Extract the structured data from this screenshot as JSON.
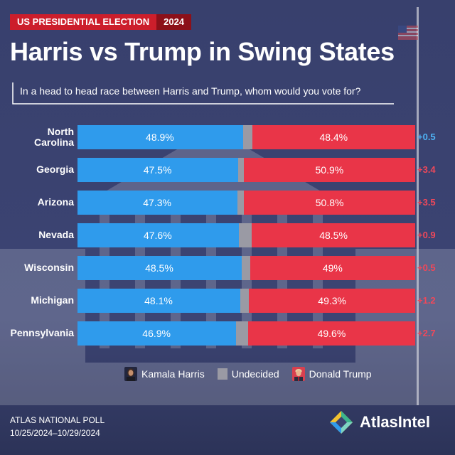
{
  "header": {
    "tag_left": "US PRESIDENTIAL ELECTION",
    "tag_right": "2024",
    "title": "Harris vs Trump in Swing States",
    "question": "In a head to head race between Harris and Trump, whom would you vote for?"
  },
  "colors": {
    "harris": "#2f9bec",
    "trump": "#e93548",
    "undecided": "#9a9aa4",
    "harris_margin": "#4fb3f5",
    "trump_margin": "#f0485a"
  },
  "chart_data": {
    "type": "bar",
    "orientation": "horizontal-stacked",
    "categories": [
      "North Carolina",
      "Georgia",
      "Arizona",
      "Nevada",
      "Wisconsin",
      "Michigan",
      "Pennsylvania"
    ],
    "series": [
      {
        "name": "Kamala Harris",
        "values": [
          48.9,
          47.5,
          47.3,
          47.6,
          48.5,
          48.1,
          46.9
        ],
        "labels": [
          "48.9%",
          "47.5%",
          "47.3%",
          "47.6%",
          "48.5%",
          "48.1%",
          "46.9%"
        ]
      },
      {
        "name": "Undecided",
        "values": [
          2.7,
          1.6,
          1.9,
          3.9,
          2.5,
          2.6,
          3.5
        ]
      },
      {
        "name": "Donald Trump",
        "values": [
          48.4,
          50.9,
          50.8,
          48.5,
          49.0,
          49.3,
          49.6
        ],
        "labels": [
          "48.4%",
          "50.9%",
          "50.8%",
          "48.5%",
          "49%",
          "49.3%",
          "49.6%"
        ]
      }
    ],
    "margins": [
      {
        "text": "+0.5",
        "leader": "Harris"
      },
      {
        "text": "+3.4",
        "leader": "Trump"
      },
      {
        "text": "+3.5",
        "leader": "Trump"
      },
      {
        "text": "+0.9",
        "leader": "Trump"
      },
      {
        "text": "+0.5",
        "leader": "Trump"
      },
      {
        "text": "+1.2",
        "leader": "Trump"
      },
      {
        "text": "+2.7",
        "leader": "Trump"
      }
    ],
    "legend": [
      "Kamala Harris",
      "Undecided",
      "Donald Trump"
    ],
    "legend_position": "bottom"
  },
  "footer": {
    "poll_name": "ATLAS NATIONAL POLL",
    "poll_dates": "10/25/2024–10/29/2024",
    "brand": "AtlasIntel"
  },
  "icons": {
    "harris_avatar": "harris-avatar-icon",
    "trump_avatar": "trump-avatar-icon",
    "brand_logo": "atlasintel-logo-icon"
  }
}
